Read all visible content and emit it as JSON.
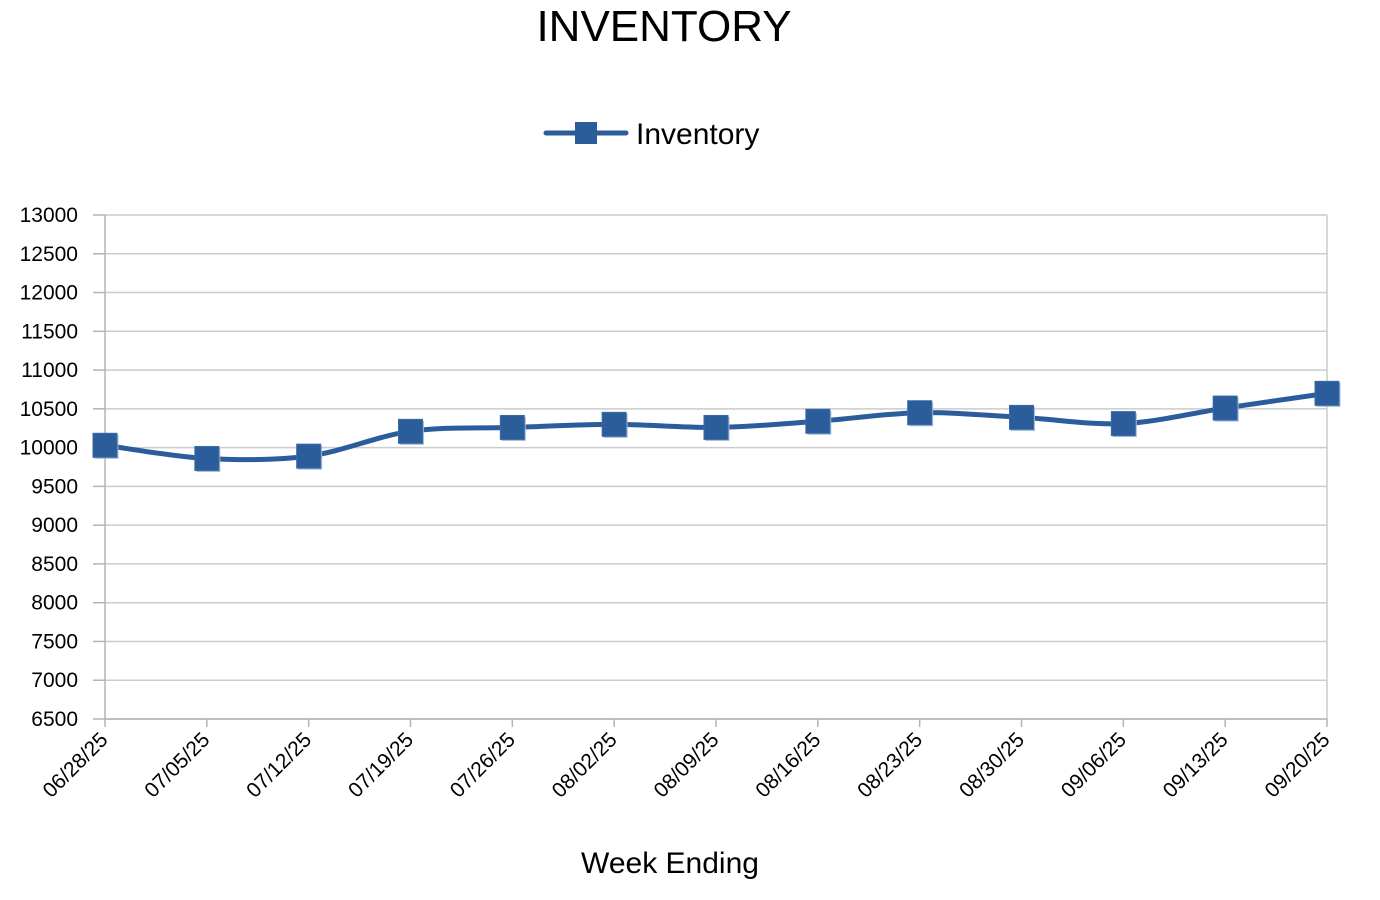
{
  "chart_data": {
    "type": "line",
    "title": "INVENTORY",
    "xlabel": "Week Ending",
    "ylabel": "",
    "categories": [
      "06/28/25",
      "07/05/25",
      "07/12/25",
      "07/19/25",
      "07/26/25",
      "08/02/25",
      "08/09/25",
      "08/16/25",
      "08/23/25",
      "08/30/25",
      "09/06/25",
      "09/13/25",
      "09/20/25"
    ],
    "series": [
      {
        "name": "Inventory",
        "values": [
          10030,
          9860,
          9890,
          10210,
          10260,
          10300,
          10260,
          10340,
          10450,
          10390,
          10310,
          10510,
          10700
        ],
        "color": "#2b5d9b",
        "marker": "square",
        "smooth": true
      }
    ],
    "ylim": [
      6500,
      13000
    ],
    "yticks": [
      6500,
      7000,
      7500,
      8000,
      8500,
      9000,
      9500,
      10000,
      10500,
      11000,
      11500,
      12000,
      12500,
      13000
    ],
    "grid": true,
    "legend_position": "top-center"
  }
}
